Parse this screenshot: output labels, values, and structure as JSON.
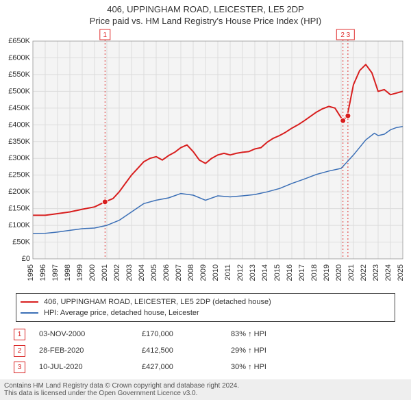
{
  "title_line1": "406, UPPINGHAM ROAD, LEICESTER, LE5 2DP",
  "title_line2": "Price paid vs. HM Land Registry's House Price Index (HPI)",
  "chart": {
    "type": "line",
    "background_color": "#ffffff",
    "plot_background_color": "#f4f4f4",
    "grid_color": "#dcdcdc",
    "axis_color": "#888888",
    "x_min": 1995,
    "x_max": 2025,
    "x_ticks": [
      1995,
      1996,
      1997,
      1998,
      1999,
      2000,
      2001,
      2002,
      2003,
      2004,
      2005,
      2006,
      2007,
      2008,
      2009,
      2010,
      2011,
      2012,
      2013,
      2014,
      2015,
      2016,
      2017,
      2018,
      2019,
      2020,
      2021,
      2022,
      2023,
      2024,
      2025
    ],
    "y_min": 0,
    "y_max": 650000,
    "y_tick_step": 50000,
    "y_tick_labels": [
      "£0",
      "£50K",
      "£100K",
      "£150K",
      "£200K",
      "£250K",
      "£300K",
      "£350K",
      "£400K",
      "£450K",
      "£500K",
      "£550K",
      "£600K",
      "£650K"
    ],
    "series": [
      {
        "name": "406, UPPINGHAM ROAD, LEICESTER, LE5 2DP (detached house)",
        "color": "#d81e1e",
        "line_width": 2,
        "data": [
          [
            1995,
            130000
          ],
          [
            1996,
            130000
          ],
          [
            1997,
            135000
          ],
          [
            1998,
            140000
          ],
          [
            1999,
            148000
          ],
          [
            2000,
            155000
          ],
          [
            2000.85,
            170000
          ],
          [
            2001.5,
            180000
          ],
          [
            2002,
            200000
          ],
          [
            2002.5,
            225000
          ],
          [
            2003,
            250000
          ],
          [
            2003.5,
            270000
          ],
          [
            2004,
            290000
          ],
          [
            2004.5,
            300000
          ],
          [
            2005,
            305000
          ],
          [
            2005.5,
            295000
          ],
          [
            2006,
            308000
          ],
          [
            2006.5,
            318000
          ],
          [
            2007,
            332000
          ],
          [
            2007.5,
            340000
          ],
          [
            2008,
            320000
          ],
          [
            2008.5,
            295000
          ],
          [
            2009,
            285000
          ],
          [
            2009.5,
            300000
          ],
          [
            2010,
            310000
          ],
          [
            2010.5,
            315000
          ],
          [
            2011,
            310000
          ],
          [
            2011.5,
            315000
          ],
          [
            2012,
            318000
          ],
          [
            2012.5,
            320000
          ],
          [
            2013,
            328000
          ],
          [
            2013.5,
            332000
          ],
          [
            2014,
            348000
          ],
          [
            2014.5,
            360000
          ],
          [
            2015,
            368000
          ],
          [
            2015.5,
            378000
          ],
          [
            2016,
            390000
          ],
          [
            2016.5,
            400000
          ],
          [
            2017,
            412000
          ],
          [
            2017.5,
            425000
          ],
          [
            2018,
            438000
          ],
          [
            2018.5,
            448000
          ],
          [
            2019,
            455000
          ],
          [
            2019.5,
            450000
          ],
          [
            2020.15,
            412500
          ],
          [
            2020.5,
            427000
          ],
          [
            2021,
            520000
          ],
          [
            2021.5,
            562000
          ],
          [
            2022,
            580000
          ],
          [
            2022.5,
            555000
          ],
          [
            2023,
            500000
          ],
          [
            2023.5,
            505000
          ],
          [
            2024,
            490000
          ],
          [
            2024.5,
            495000
          ],
          [
            2025,
            500000
          ]
        ],
        "markers": [
          {
            "n": "1",
            "x": 2000.85,
            "y": 170000
          },
          {
            "n": "2",
            "x": 2020.15,
            "y": 412500
          },
          {
            "n": "3",
            "x": 2020.55,
            "y": 427000
          }
        ]
      },
      {
        "name": "HPI: Average price, detached house, Leicester",
        "color": "#3b6fb6",
        "line_width": 1.5,
        "data": [
          [
            1995,
            75000
          ],
          [
            1996,
            76000
          ],
          [
            1997,
            80000
          ],
          [
            1998,
            85000
          ],
          [
            1999,
            90000
          ],
          [
            2000,
            92000
          ],
          [
            2001,
            100000
          ],
          [
            2002,
            115000
          ],
          [
            2003,
            140000
          ],
          [
            2004,
            165000
          ],
          [
            2005,
            175000
          ],
          [
            2006,
            182000
          ],
          [
            2007,
            195000
          ],
          [
            2008,
            190000
          ],
          [
            2009,
            175000
          ],
          [
            2010,
            188000
          ],
          [
            2011,
            185000
          ],
          [
            2012,
            188000
          ],
          [
            2013,
            192000
          ],
          [
            2014,
            200000
          ],
          [
            2015,
            210000
          ],
          [
            2016,
            225000
          ],
          [
            2017,
            238000
          ],
          [
            2018,
            252000
          ],
          [
            2019,
            262000
          ],
          [
            2020,
            270000
          ],
          [
            2021,
            310000
          ],
          [
            2022,
            355000
          ],
          [
            2022.7,
            375000
          ],
          [
            2023,
            368000
          ],
          [
            2023.5,
            372000
          ],
          [
            2024,
            385000
          ],
          [
            2024.5,
            392000
          ],
          [
            2025,
            395000
          ]
        ]
      }
    ],
    "event_lines": [
      2000.85,
      2020.15,
      2020.55
    ],
    "event_line_color": "#e03030",
    "event_line_dash": "2,3",
    "event_top_labels": [
      {
        "x": 2000.85,
        "label": "1"
      },
      {
        "x": 2020.35,
        "label": "2 3",
        "combined": true
      }
    ],
    "label_fontsize": 11,
    "title_fontsize": 13
  },
  "legend": {
    "border_color": "#444444",
    "items": [
      {
        "label": "406, UPPINGHAM ROAD, LEICESTER, LE5 2DP (detached house)",
        "color": "#d81e1e"
      },
      {
        "label": "HPI: Average price, detached house, Leicester",
        "color": "#3b6fb6"
      }
    ]
  },
  "events": [
    {
      "n": "1",
      "color": "#d81e1e",
      "date": "03-NOV-2000",
      "price": "£170,000",
      "pct": "83% ↑ HPI"
    },
    {
      "n": "2",
      "color": "#d81e1e",
      "date": "28-FEB-2020",
      "price": "£412,500",
      "pct": "29% ↑ HPI"
    },
    {
      "n": "3",
      "color": "#d81e1e",
      "date": "10-JUL-2020",
      "price": "£427,000",
      "pct": "30% ↑ HPI"
    }
  ],
  "footer_line1": "Contains HM Land Registry data © Crown copyright and database right 2024.",
  "footer_line2": "This data is licensed under the Open Government Licence v3.0."
}
